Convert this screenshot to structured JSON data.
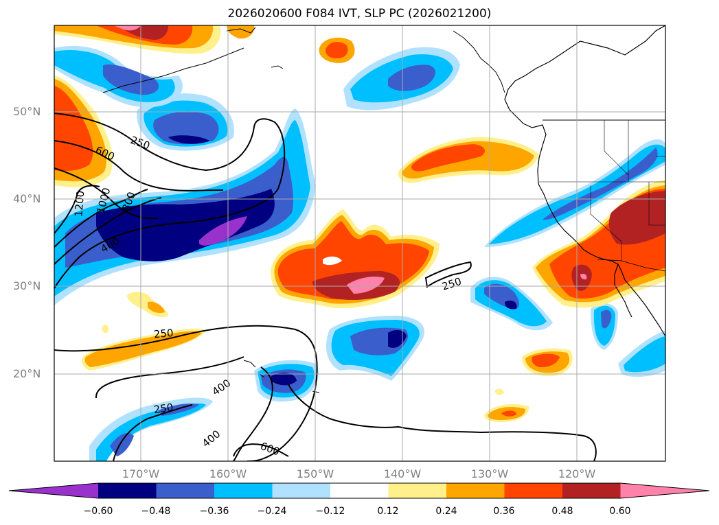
{
  "title": "2026020600 F084 IVT, SLP PC (2026021200)",
  "lat_labels": [
    "50°N",
    "40°N",
    "30°N",
    "20°N"
  ],
  "lon_labels": [
    "170°W",
    "160°W",
    "150°W",
    "140°W",
    "130°W",
    "120°W"
  ],
  "colorbar": {
    "labels": [
      "−0.60",
      "−0.48",
      "−0.36",
      "−0.24",
      "−0.12",
      "0.12",
      "0.24",
      "0.36",
      "0.48",
      "0.60"
    ],
    "colors": [
      "#9932cc",
      "#000080",
      "#3a5fcd",
      "#00bfff",
      "#b0e2ff",
      "#ffffff",
      "#fff08c",
      "#ffa500",
      "#ff4500",
      "#b22222",
      "#ff82ab"
    ]
  },
  "contour_labels": [
    "250",
    "600",
    "1200",
    "1000",
    "800",
    "400",
    "250",
    "250",
    "400",
    "250",
    "400",
    "600"
  ],
  "colors": {
    "purple": "#9932cc",
    "navy": "#000080",
    "royal": "#3a5fcd",
    "sky": "#00bfff",
    "light": "#b0e2ff",
    "yellow": "#fff08c",
    "orange": "#ffa500",
    "redorange": "#ff4500",
    "firebrick": "#b22222",
    "pink": "#ff82ab"
  }
}
